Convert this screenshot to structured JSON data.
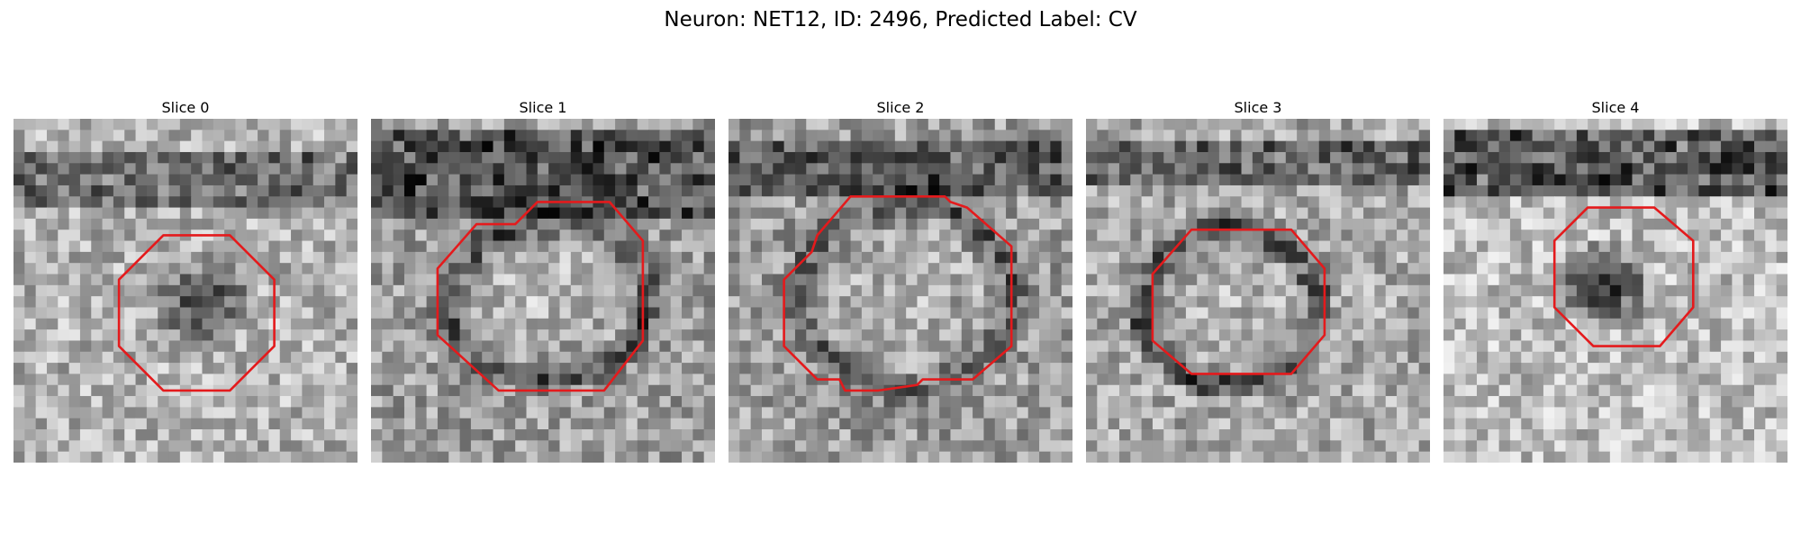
{
  "figure": {
    "title": "Neuron: NET12, ID: 2496, Predicted Label: CV"
  },
  "panels": [
    {
      "title": "Slice 0"
    },
    {
      "title": "Slice 1"
    },
    {
      "title": "Slice 2"
    },
    {
      "title": "Slice 3"
    },
    {
      "title": "Slice 4"
    }
  ],
  "contour_color": "#e41a1c",
  "image_colormap": "grayscale"
}
